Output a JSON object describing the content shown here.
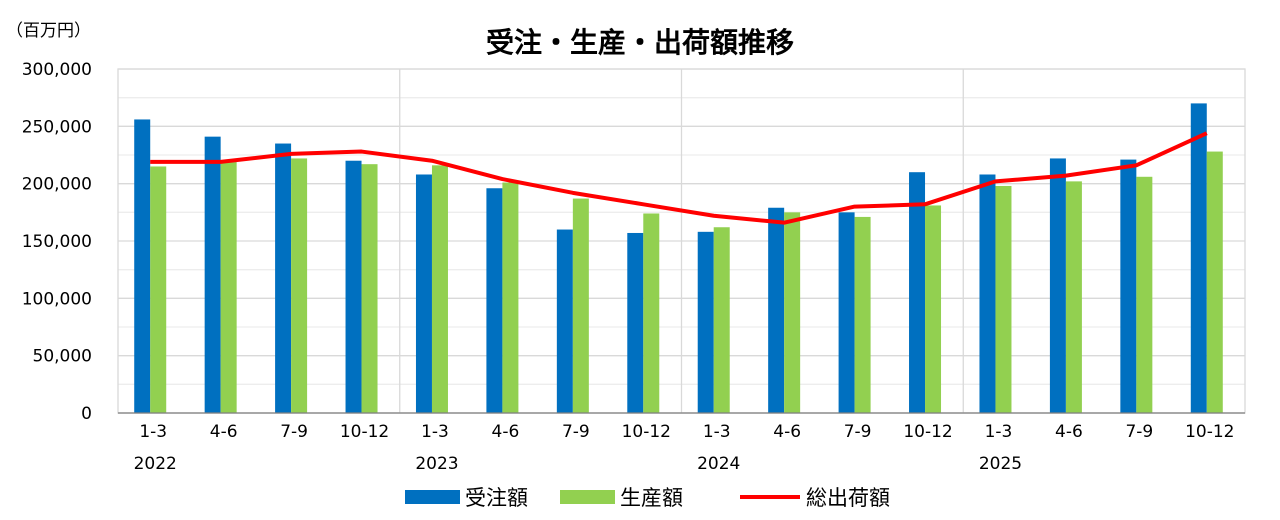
{
  "chart_data": {
    "type": "bar",
    "title": "受注・生産・出荷額推移",
    "unit_label": "（百万円）",
    "ylim": [
      0,
      300000
    ],
    "yticks": [
      0,
      50000,
      100000,
      150000,
      200000,
      250000,
      300000
    ],
    "ytick_labels": [
      "0",
      "50,000",
      "100,000",
      "150,000",
      "200,000",
      "250,000",
      "300,000"
    ],
    "grid": true,
    "legend_position": "bottom",
    "categories": [
      "1-3",
      "4-6",
      "7-9",
      "10-12",
      "1-3",
      "4-6",
      "7-9",
      "10-12",
      "1-3",
      "4-6",
      "7-9",
      "10-12",
      "1-3",
      "4-6",
      "7-9",
      "10-12"
    ],
    "years": [
      {
        "label": "2022",
        "start_index": 0
      },
      {
        "label": "2023",
        "start_index": 4
      },
      {
        "label": "2024",
        "start_index": 8
      },
      {
        "label": "2025",
        "start_index": 12
      }
    ],
    "series": [
      {
        "name": "受注額",
        "type": "bar",
        "color": "#0070C0",
        "values": [
          256000,
          241000,
          235000,
          220000,
          208000,
          196000,
          160000,
          157000,
          158000,
          179000,
          175000,
          210000,
          208000,
          222000,
          221000,
          270000
        ]
      },
      {
        "name": "生産額",
        "type": "bar",
        "color": "#92D050",
        "values": [
          215000,
          219000,
          222000,
          217000,
          216000,
          201000,
          187000,
          174000,
          162000,
          175000,
          171000,
          181000,
          198000,
          202000,
          206000,
          228000
        ]
      },
      {
        "name": "総出荷額",
        "type": "line",
        "color": "#FF0000",
        "values": [
          219000,
          219000,
          226000,
          228000,
          220000,
          204000,
          192000,
          182000,
          172000,
          166000,
          180000,
          182000,
          202000,
          207000,
          216000,
          244000
        ]
      }
    ]
  }
}
